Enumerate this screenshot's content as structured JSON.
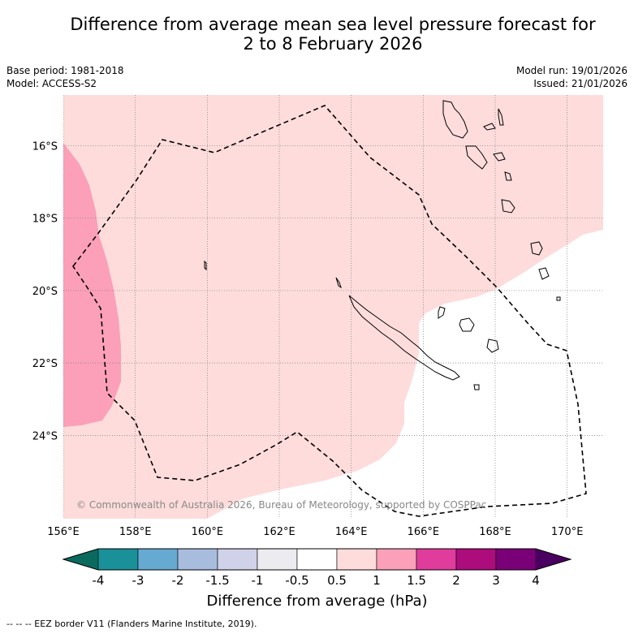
{
  "title_line1": "Difference from average mean sea level pressure forecast for",
  "title_line2": "2 to 8 February 2026",
  "meta": {
    "base_period": "Base period: 1981-2018",
    "model": "Model: ACCESS-S2",
    "model_run": "Model run: 19/01/2026",
    "issued": "Issued: 21/01/2026"
  },
  "map": {
    "lon_range": [
      156,
      171
    ],
    "lat_range": [
      -26.3,
      -14.6
    ],
    "lon_ticks": [
      "156°E",
      "158°E",
      "160°E",
      "162°E",
      "164°E",
      "166°E",
      "168°E",
      "170°E"
    ],
    "lat_ticks": [
      "16°S",
      "18°S",
      "20°S",
      "22°S",
      "24°S"
    ],
    "copyright": "© Commonwealth of Australia 2026, Bureau of Meteorology, supported by COSPPac"
  },
  "colorbar": {
    "labels": [
      "-4",
      "-3",
      "-2",
      "-1.5",
      "-1",
      "-0.5",
      "0.5",
      "1",
      "1.5",
      "2",
      "3",
      "4"
    ],
    "colors": [
      "#1a9098",
      "#66aad2",
      "#a8bcde",
      "#cfd2e8",
      "#ececf0",
      "#ffffff",
      "#fedcdc",
      "#fba0b8",
      "#df3c9c",
      "#ac0c7c",
      "#7a0077"
    ],
    "under_color": "#0a6a5e",
    "over_color": "#4a0060",
    "label": "Difference from average (hPa)"
  },
  "colors": {
    "fill_05_1": "#fedcdc",
    "fill_1_15": "#fba0b8"
  },
  "footnote": "--  --  -- EEZ border V11 (Flanders Marine Institute, 2019)."
}
